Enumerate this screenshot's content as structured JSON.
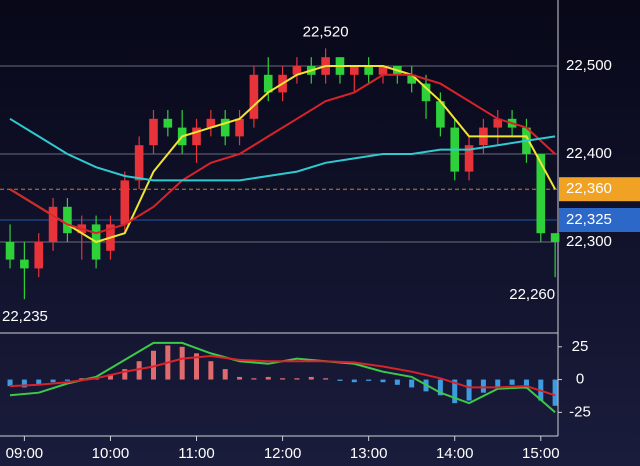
{
  "chart_data": [
    {
      "type": "candlestick",
      "xlim": [
        523,
        912
      ],
      "ylim": [
        22.2,
        22.575
      ],
      "xticks": [
        {
          "value": 540,
          "label": "09:00"
        },
        {
          "value": 600,
          "label": "10:00"
        },
        {
          "value": 660,
          "label": "11:00"
        },
        {
          "value": 720,
          "label": "12:00"
        },
        {
          "value": 780,
          "label": "13:00"
        },
        {
          "value": 840,
          "label": "14:00"
        },
        {
          "value": 900,
          "label": "15:00"
        }
      ],
      "yticks": [
        {
          "value": 22.5,
          "label": "22,500"
        },
        {
          "value": 22.4,
          "label": "22,400"
        },
        {
          "value": 22.3,
          "label": "22,300"
        }
      ],
      "grid": true,
      "up_color": "#e8333b",
      "down_color": "#2fd13a",
      "x": [
        530,
        540,
        550,
        560,
        570,
        580,
        590,
        600,
        610,
        620,
        630,
        640,
        650,
        660,
        670,
        680,
        690,
        700,
        710,
        720,
        730,
        740,
        750,
        760,
        770,
        780,
        790,
        800,
        810,
        820,
        830,
        840,
        850,
        860,
        870,
        880,
        890,
        900,
        910
      ],
      "open": [
        22.3,
        22.28,
        22.27,
        22.3,
        22.34,
        22.31,
        22.32,
        22.29,
        22.32,
        22.37,
        22.41,
        22.44,
        22.43,
        22.41,
        22.43,
        22.44,
        22.42,
        22.44,
        22.49,
        22.47,
        22.49,
        22.5,
        22.49,
        22.51,
        22.49,
        22.5,
        22.49,
        22.5,
        22.49,
        22.48,
        22.46,
        22.43,
        22.38,
        22.41,
        22.43,
        22.44,
        22.43,
        22.4,
        22.31
      ],
      "high": [
        22.32,
        22.3,
        22.31,
        22.35,
        22.35,
        22.33,
        22.33,
        22.33,
        22.38,
        22.42,
        22.45,
        22.45,
        22.45,
        22.44,
        22.45,
        22.45,
        22.45,
        22.5,
        22.51,
        22.5,
        22.51,
        22.51,
        22.52,
        22.51,
        22.5,
        22.51,
        22.5,
        22.5,
        22.5,
        22.49,
        22.47,
        22.44,
        22.42,
        22.44,
        22.45,
        22.45,
        22.44,
        22.4,
        22.31
      ],
      "low": [
        22.27,
        22.235,
        22.26,
        22.29,
        22.3,
        22.28,
        22.27,
        22.28,
        22.31,
        22.36,
        22.4,
        22.42,
        22.4,
        22.39,
        22.42,
        22.41,
        22.41,
        22.43,
        22.46,
        22.46,
        22.48,
        22.48,
        22.48,
        22.48,
        22.47,
        22.48,
        22.48,
        22.48,
        22.47,
        22.44,
        22.42,
        22.37,
        22.37,
        22.4,
        22.41,
        22.42,
        22.39,
        22.3,
        22.26
      ],
      "close": [
        22.28,
        22.27,
        22.3,
        22.34,
        22.31,
        22.32,
        22.28,
        22.32,
        22.37,
        22.41,
        22.44,
        22.43,
        22.41,
        22.43,
        22.44,
        22.42,
        22.44,
        22.49,
        22.47,
        22.49,
        22.5,
        22.49,
        22.51,
        22.49,
        22.5,
        22.49,
        22.5,
        22.49,
        22.48,
        22.46,
        22.43,
        22.38,
        22.41,
        22.43,
        22.44,
        22.43,
        22.4,
        22.31,
        22.3
      ],
      "lines": [
        {
          "color": "#f2e531",
          "x": [
            530,
            550,
            570,
            590,
            610,
            630,
            650,
            670,
            690,
            710,
            730,
            750,
            770,
            790,
            810,
            830,
            850,
            870,
            890,
            910
          ],
          "values": [
            22.36,
            22.34,
            22.32,
            22.3,
            22.31,
            22.38,
            22.42,
            22.43,
            22.44,
            22.47,
            22.49,
            22.5,
            22.5,
            22.5,
            22.49,
            22.46,
            22.42,
            22.42,
            22.42,
            22.36
          ]
        },
        {
          "color": "#d8232a",
          "x": [
            530,
            550,
            570,
            590,
            610,
            630,
            650,
            670,
            690,
            710,
            730,
            750,
            770,
            790,
            810,
            830,
            850,
            870,
            890,
            910
          ],
          "values": [
            22.36,
            22.34,
            22.32,
            22.31,
            22.32,
            22.34,
            22.37,
            22.39,
            22.4,
            22.42,
            22.44,
            22.46,
            22.47,
            22.49,
            22.49,
            22.48,
            22.46,
            22.44,
            22.43,
            22.4
          ]
        },
        {
          "color": "#2fc9cf",
          "x": [
            530,
            550,
            570,
            590,
            610,
            630,
            650,
            670,
            690,
            710,
            730,
            750,
            770,
            790,
            810,
            830,
            850,
            870,
            890,
            910
          ],
          "values": [
            22.44,
            22.42,
            22.4,
            22.385,
            22.375,
            22.37,
            22.37,
            22.37,
            22.37,
            22.375,
            22.38,
            22.39,
            22.395,
            22.4,
            22.4,
            22.405,
            22.405,
            22.41,
            22.415,
            22.42
          ]
        }
      ],
      "ref_lines": [
        {
          "value": 22.36,
          "label": "22,360",
          "color": "#f0a224"
        },
        {
          "value": 22.325,
          "label": "22,325",
          "color": "#2c68c8"
        }
      ],
      "annotations": [
        {
          "label": "22,520",
          "x": 750,
          "value": 22.52
        },
        {
          "label": "22,235",
          "x": 540,
          "value": 22.235
        },
        {
          "label": "22,260",
          "x": 910,
          "value": 22.26
        }
      ]
    },
    {
      "type": "macd",
      "xlim": [
        523,
        912
      ],
      "ylim": [
        -40,
        34
      ],
      "yticks": [
        25,
        0,
        -25
      ],
      "up_color": "#e06a6e",
      "down_color": "#3d9be0",
      "x": [
        530,
        540,
        550,
        560,
        570,
        580,
        590,
        600,
        610,
        620,
        630,
        640,
        650,
        660,
        670,
        680,
        690,
        700,
        710,
        720,
        730,
        740,
        750,
        760,
        770,
        780,
        790,
        800,
        810,
        820,
        830,
        840,
        850,
        860,
        870,
        880,
        890,
        900,
        910
      ],
      "values": [
        -5,
        -6,
        -4,
        -2,
        -1,
        1,
        2,
        4,
        8,
        14,
        22,
        26,
        25,
        20,
        14,
        8,
        2,
        1,
        2,
        1,
        1,
        2,
        1,
        -1,
        -2,
        -1,
        -2,
        -4,
        -6,
        -9,
        -12,
        -18,
        -16,
        -10,
        -6,
        -4,
        -7,
        -16,
        -20
      ],
      "lines": [
        {
          "color": "#3cc94a",
          "x": [
            530,
            550,
            570,
            590,
            610,
            630,
            650,
            670,
            690,
            710,
            730,
            750,
            770,
            790,
            810,
            830,
            850,
            870,
            890,
            910
          ],
          "values": [
            -12,
            -10,
            -3,
            2,
            15,
            28,
            28,
            20,
            14,
            12,
            16,
            14,
            12,
            6,
            2,
            -10,
            -18,
            -7,
            -6,
            -25
          ]
        },
        {
          "color": "#d8232a",
          "x": [
            530,
            550,
            570,
            590,
            610,
            630,
            650,
            670,
            690,
            710,
            730,
            750,
            770,
            790,
            810,
            830,
            850,
            870,
            890,
            910
          ],
          "values": [
            -5,
            -4,
            -2,
            1,
            6,
            10,
            16,
            18,
            15,
            14,
            14,
            14,
            13,
            10,
            6,
            1,
            -6,
            -6,
            -5,
            -12
          ]
        }
      ]
    }
  ]
}
